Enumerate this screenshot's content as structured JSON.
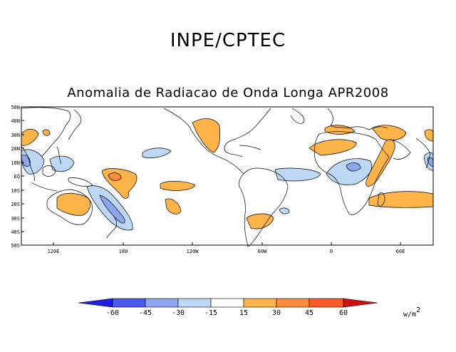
{
  "header": {
    "org": "INPE/CPTEC",
    "title": "Anomalia de Radiacao de Onda Longa APR2008"
  },
  "axes": {
    "lat_labels": [
      "50N",
      "40N",
      "30N",
      "20N",
      "10N",
      "EQ",
      "10S",
      "20S",
      "30S",
      "40S",
      "50S"
    ],
    "lon_labels": [
      "120E",
      "180",
      "120W",
      "60W",
      "0",
      "60E"
    ]
  },
  "colorbar": {
    "labels": [
      "-60",
      "-45",
      "-30",
      "-15",
      "15",
      "30",
      "45",
      "60"
    ],
    "units_base": "w/m",
    "units_exp": "2",
    "colors": [
      "#1e1ee6",
      "#4a5cf0",
      "#8ea6f0",
      "#bcd8f4",
      "#ffffff",
      "#ffb44a",
      "#ff8c3c",
      "#ff5a28",
      "#d01010"
    ]
  }
}
